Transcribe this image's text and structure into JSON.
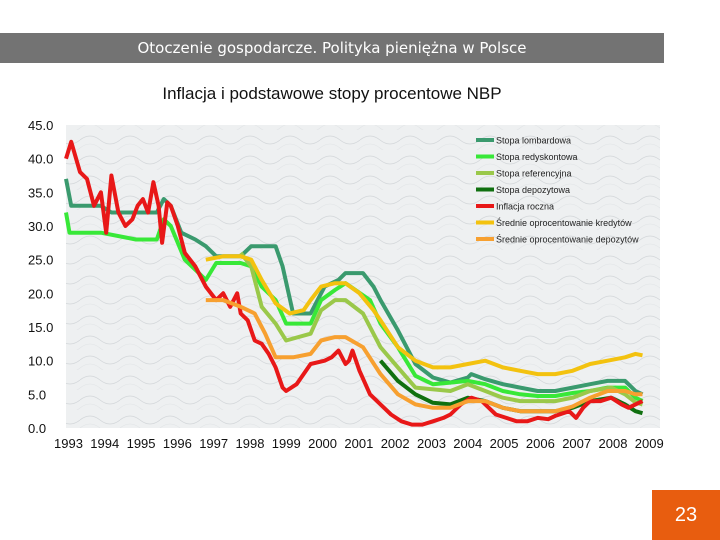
{
  "header": {
    "title": "Otoczenie gospodarcze. Polityka pieniężna w Polsce"
  },
  "page_number": "23",
  "chart_data": {
    "type": "line",
    "title": "Inflacja i podstawowe stopy procentowe NBP",
    "xlabel": "",
    "ylabel": "",
    "x_ticks": [
      "1993",
      "1994",
      "1995",
      "1996",
      "1997",
      "1998",
      "1999",
      "2000",
      "2001",
      "2002",
      "2003",
      "2004",
      "2005",
      "2006",
      "2007",
      "2008",
      "2009"
    ],
    "y_ticks": [
      "45.0",
      "40.0",
      "35.0",
      "30.0",
      "25.0",
      "20.0",
      "15.0",
      "10.0",
      "5.0",
      "0.0"
    ],
    "xlim": [
      1993,
      2010
    ],
    "ylim": [
      0,
      45
    ],
    "grid": false,
    "legend_position": "top-right",
    "series": [
      {
        "name": "Stopa lombardowa",
        "color": "#3a9a6e",
        "points": [
          [
            1993,
            37
          ],
          [
            1993.15,
            33
          ],
          [
            1993.8,
            33
          ],
          [
            1994,
            33
          ],
          [
            1994.3,
            32
          ],
          [
            1995,
            32
          ],
          [
            1995.6,
            32
          ],
          [
            1995.8,
            34
          ],
          [
            1996,
            33
          ],
          [
            1996.3,
            29
          ],
          [
            1996.7,
            28
          ],
          [
            1997,
            27
          ],
          [
            1997.3,
            25.5
          ],
          [
            1998,
            25.5
          ],
          [
            1998.3,
            27
          ],
          [
            1999,
            27
          ],
          [
            1999.2,
            24
          ],
          [
            1999.5,
            17
          ],
          [
            2000,
            17
          ],
          [
            2000.2,
            19
          ],
          [
            2000.4,
            21
          ],
          [
            2000.8,
            22
          ],
          [
            2001,
            23
          ],
          [
            2001.5,
            23
          ],
          [
            2001.8,
            21
          ],
          [
            2002,
            19
          ],
          [
            2002.5,
            14.5
          ],
          [
            2003,
            9.5
          ],
          [
            2003.5,
            7.5
          ],
          [
            2004,
            6.75
          ],
          [
            2004.5,
            7.5
          ],
          [
            2004.6,
            8
          ],
          [
            2005,
            7.25
          ],
          [
            2005.5,
            6.5
          ],
          [
            2006,
            6
          ],
          [
            2006.5,
            5.5
          ],
          [
            2007,
            5.5
          ],
          [
            2007.5,
            6
          ],
          [
            2008,
            6.5
          ],
          [
            2008.5,
            7
          ],
          [
            2009,
            7
          ],
          [
            2009.3,
            5.5
          ],
          [
            2009.5,
            5
          ]
        ]
      },
      {
        "name": "Stopa redyskontowa",
        "color": "#38e838",
        "points": [
          [
            1993,
            32
          ],
          [
            1993.1,
            29
          ],
          [
            1994,
            29
          ],
          [
            1995,
            28
          ],
          [
            1995.6,
            28
          ],
          [
            1995.8,
            31
          ],
          [
            1996,
            30
          ],
          [
            1996.4,
            25
          ],
          [
            1996.8,
            23
          ],
          [
            1997,
            22
          ],
          [
            1997.3,
            24.5
          ],
          [
            1998,
            24.5
          ],
          [
            1998.3,
            24
          ],
          [
            1998.6,
            21
          ],
          [
            1999,
            19
          ],
          [
            1999.3,
            15.5
          ],
          [
            2000,
            15.5
          ],
          [
            2000.3,
            19
          ],
          [
            2000.7,
            20.5
          ],
          [
            2001,
            21.5
          ],
          [
            2001.7,
            19
          ],
          [
            2002,
            15.5
          ],
          [
            2002.5,
            12
          ],
          [
            2003,
            7.75
          ],
          [
            2003.5,
            6.5
          ],
          [
            2004,
            6.75
          ],
          [
            2004.5,
            7
          ],
          [
            2005,
            6.5
          ],
          [
            2005.5,
            5.5
          ],
          [
            2006,
            5
          ],
          [
            2006.5,
            4.75
          ],
          [
            2007,
            4.75
          ],
          [
            2007.5,
            5.2
          ],
          [
            2008,
            5.5
          ],
          [
            2008.5,
            6
          ],
          [
            2009,
            6
          ],
          [
            2009.3,
            4.5
          ],
          [
            2009.5,
            4
          ]
        ]
      },
      {
        "name": "Stopa referencyjna",
        "color": "#9ac84a",
        "points": [
          [
            1998,
            26
          ],
          [
            1998.3,
            24
          ],
          [
            1998.6,
            18
          ],
          [
            1999,
            15.5
          ],
          [
            1999.3,
            13
          ],
          [
            2000,
            14
          ],
          [
            2000.3,
            17.5
          ],
          [
            2000.7,
            19
          ],
          [
            2001,
            19
          ],
          [
            2001.5,
            17
          ],
          [
            2002,
            12
          ],
          [
            2002.5,
            9
          ],
          [
            2003,
            6
          ],
          [
            2004,
            5.5
          ],
          [
            2004.5,
            6.5
          ],
          [
            2005,
            5.5
          ],
          [
            2005.5,
            4.5
          ],
          [
            2006,
            4
          ],
          [
            2007,
            4
          ],
          [
            2007.5,
            4.5
          ],
          [
            2008,
            5.5
          ],
          [
            2008.6,
            6
          ],
          [
            2009,
            5
          ],
          [
            2009.3,
            3.8
          ],
          [
            2009.5,
            3.5
          ]
        ]
      },
      {
        "name": "Stopa depozytowa",
        "color": "#107010",
        "points": [
          [
            2002,
            10
          ],
          [
            2002.5,
            7
          ],
          [
            2003,
            5
          ],
          [
            2003.5,
            3.75
          ],
          [
            2004,
            3.5
          ],
          [
            2004.5,
            4.5
          ],
          [
            2005,
            4
          ],
          [
            2005.5,
            3
          ],
          [
            2006,
            2.5
          ],
          [
            2007,
            2.5
          ],
          [
            2007.5,
            3
          ],
          [
            2008,
            4
          ],
          [
            2008.6,
            4.5
          ],
          [
            2009,
            3.5
          ],
          [
            2009.3,
            2.5
          ],
          [
            2009.5,
            2.2
          ]
        ]
      },
      {
        "name": "Inflacja roczna",
        "color": "#e81818",
        "points": [
          [
            1993,
            40
          ],
          [
            1993.15,
            42.5
          ],
          [
            1993.4,
            38
          ],
          [
            1993.6,
            37
          ],
          [
            1993.8,
            33
          ],
          [
            1994,
            35
          ],
          [
            1994.15,
            29
          ],
          [
            1994.3,
            37.5
          ],
          [
            1994.5,
            32
          ],
          [
            1994.7,
            30
          ],
          [
            1994.9,
            31
          ],
          [
            1995.05,
            33
          ],
          [
            1995.2,
            34
          ],
          [
            1995.35,
            32
          ],
          [
            1995.5,
            36.5
          ],
          [
            1995.65,
            33
          ],
          [
            1995.75,
            27.5
          ],
          [
            1995.9,
            33.5
          ],
          [
            1996,
            33
          ],
          [
            1996.2,
            30
          ],
          [
            1996.4,
            26
          ],
          [
            1996.7,
            24
          ],
          [
            1997,
            21
          ],
          [
            1997.3,
            19
          ],
          [
            1997.5,
            20
          ],
          [
            1997.7,
            18
          ],
          [
            1997.9,
            20
          ],
          [
            1998,
            17
          ],
          [
            1998.2,
            16
          ],
          [
            1998.4,
            13
          ],
          [
            1998.6,
            12.5
          ],
          [
            1998.8,
            11
          ],
          [
            1999,
            9
          ],
          [
            1999.2,
            6
          ],
          [
            1999.3,
            5.5
          ],
          [
            1999.6,
            6.5
          ],
          [
            1999.8,
            8
          ],
          [
            2000,
            9.5
          ],
          [
            2000.4,
            10
          ],
          [
            2000.6,
            10.5
          ],
          [
            2000.8,
            11.5
          ],
          [
            2001,
            9.5
          ],
          [
            2001.1,
            10
          ],
          [
            2001.2,
            11.5
          ],
          [
            2001.4,
            8.5
          ],
          [
            2001.7,
            5
          ],
          [
            2001.9,
            4
          ],
          [
            2002,
            3.5
          ],
          [
            2002.3,
            2
          ],
          [
            2002.6,
            1
          ],
          [
            2002.9,
            0.5
          ],
          [
            2003.2,
            0.5
          ],
          [
            2003.5,
            1
          ],
          [
            2003.8,
            1.5
          ],
          [
            2004,
            2
          ],
          [
            2004.3,
            3.5
          ],
          [
            2004.6,
            4.5
          ],
          [
            2004.9,
            4
          ],
          [
            2005,
            3.5
          ],
          [
            2005.3,
            2
          ],
          [
            2005.6,
            1.5
          ],
          [
            2005.9,
            1
          ],
          [
            2006.2,
            1
          ],
          [
            2006.5,
            1.5
          ],
          [
            2006.8,
            1.3
          ],
          [
            2007,
            1.8
          ],
          [
            2007.4,
            2.5
          ],
          [
            2007.6,
            1.5
          ],
          [
            2007.8,
            3
          ],
          [
            2008,
            4
          ],
          [
            2008.3,
            4
          ],
          [
            2008.6,
            4.5
          ],
          [
            2008.9,
            3.5
          ],
          [
            2009.1,
            3
          ],
          [
            2009.3,
            3.5
          ],
          [
            2009.5,
            4
          ]
        ]
      },
      {
        "name": "Średnie oprocentowanie kredytów",
        "color": "#f3c20f",
        "points": [
          [
            1997,
            25
          ],
          [
            1997.5,
            25.5
          ],
          [
            1998,
            25.5
          ],
          [
            1998.3,
            25
          ],
          [
            1998.6,
            22
          ],
          [
            1999,
            18.5
          ],
          [
            1999.4,
            17
          ],
          [
            1999.8,
            17.5
          ],
          [
            2000,
            19
          ],
          [
            2000.3,
            21
          ],
          [
            2000.7,
            21.5
          ],
          [
            2001,
            21.5
          ],
          [
            2001.4,
            20
          ],
          [
            2001.8,
            17.5
          ],
          [
            2002,
            16
          ],
          [
            2002.5,
            12
          ],
          [
            2003,
            10
          ],
          [
            2003.5,
            9
          ],
          [
            2004,
            9
          ],
          [
            2004.5,
            9.5
          ],
          [
            2005,
            10
          ],
          [
            2005.5,
            9
          ],
          [
            2006,
            8.5
          ],
          [
            2006.5,
            8
          ],
          [
            2007,
            8
          ],
          [
            2007.5,
            8.5
          ],
          [
            2008,
            9.5
          ],
          [
            2008.5,
            10
          ],
          [
            2009,
            10.5
          ],
          [
            2009.3,
            11
          ],
          [
            2009.5,
            10.8
          ]
        ]
      },
      {
        "name": "Średnie oprocentowanie depozytów",
        "color": "#f7a030",
        "points": [
          [
            1997,
            19
          ],
          [
            1997.5,
            19
          ],
          [
            1998,
            18
          ],
          [
            1998.4,
            17
          ],
          [
            1998.7,
            14
          ],
          [
            1999,
            10.5
          ],
          [
            1999.5,
            10.5
          ],
          [
            2000,
            11
          ],
          [
            2000.3,
            13
          ],
          [
            2000.7,
            13.5
          ],
          [
            2001,
            13.5
          ],
          [
            2001.5,
            12
          ],
          [
            2002,
            8
          ],
          [
            2002.5,
            5
          ],
          [
            2003,
            3.5
          ],
          [
            2003.5,
            3
          ],
          [
            2004,
            3
          ],
          [
            2004.5,
            4
          ],
          [
            2005,
            4
          ],
          [
            2005.5,
            3
          ],
          [
            2006,
            2.5
          ],
          [
            2006.5,
            2.5
          ],
          [
            2007,
            2.5
          ],
          [
            2007.5,
            3.2
          ],
          [
            2008,
            4.5
          ],
          [
            2008.5,
            5.5
          ],
          [
            2009,
            5.5
          ],
          [
            2009.3,
            5
          ],
          [
            2009.5,
            5
          ]
        ]
      }
    ]
  }
}
